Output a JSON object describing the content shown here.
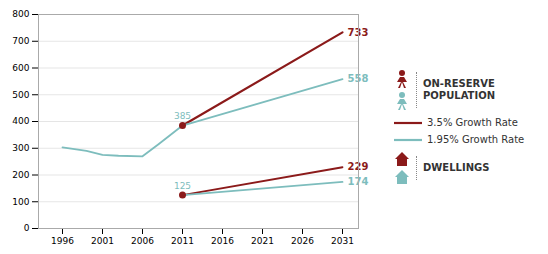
{
  "chart_data": {
    "type": "line",
    "xlim": [
      1993,
      2033
    ],
    "xticks": [
      1996,
      2001,
      2006,
      2011,
      2016,
      2021,
      2026,
      2031
    ],
    "ylim": [
      0,
      800
    ],
    "yticks": [
      0,
      100,
      200,
      300,
      400,
      500,
      600,
      700,
      800
    ],
    "grid": true,
    "legend": "right",
    "legend_titles": [
      "ON-RESERVE\nPOPULATION",
      "DWELLINGS"
    ],
    "series": [
      {
        "color": "#7dbdbd",
        "x": [
          1996,
          1999,
          2001,
          2003,
          2006,
          2008,
          2011
        ],
        "values": [
          303,
          290,
          275,
          272,
          270,
          315,
          385
        ]
      },
      {
        "name": "3.5% Growth Rate",
        "color": "#8B1A1A",
        "x": [
          2011,
          2031
        ],
        "values": [
          385,
          733
        ]
      },
      {
        "name": "1.95% Growth Rate",
        "color": "#7dbdbd",
        "x": [
          2011,
          2031
        ],
        "values": [
          385,
          558
        ]
      },
      {
        "color": "#8B1A1A",
        "x": [
          2011,
          2031
        ],
        "values": [
          125,
          229
        ]
      },
      {
        "color": "#7dbdbd",
        "x": [
          2011,
          2031
        ],
        "values": [
          125,
          174
        ]
      },
      {
        "type": "scatter",
        "marker": "o",
        "color": "#8B1A1A",
        "x": [
          2011,
          2011
        ],
        "values": [
          385,
          125
        ]
      }
    ],
    "annotations": [
      {
        "text": "385",
        "x": 2011,
        "y": 385,
        "color": "#7dbdbd"
      },
      {
        "text": "125",
        "x": 2011,
        "y": 125,
        "color": "#7dbdbd"
      },
      {
        "text": "733",
        "x": 2031,
        "y": 733,
        "color": "#8B1A1A"
      },
      {
        "text": "558",
        "x": 2031,
        "y": 558,
        "color": "#7dbdbd"
      },
      {
        "text": "229",
        "x": 2031,
        "y": 229,
        "color": "#8B1A1A"
      },
      {
        "text": "174",
        "x": 2031,
        "y": 174,
        "color": "#7dbdbd"
      }
    ]
  }
}
